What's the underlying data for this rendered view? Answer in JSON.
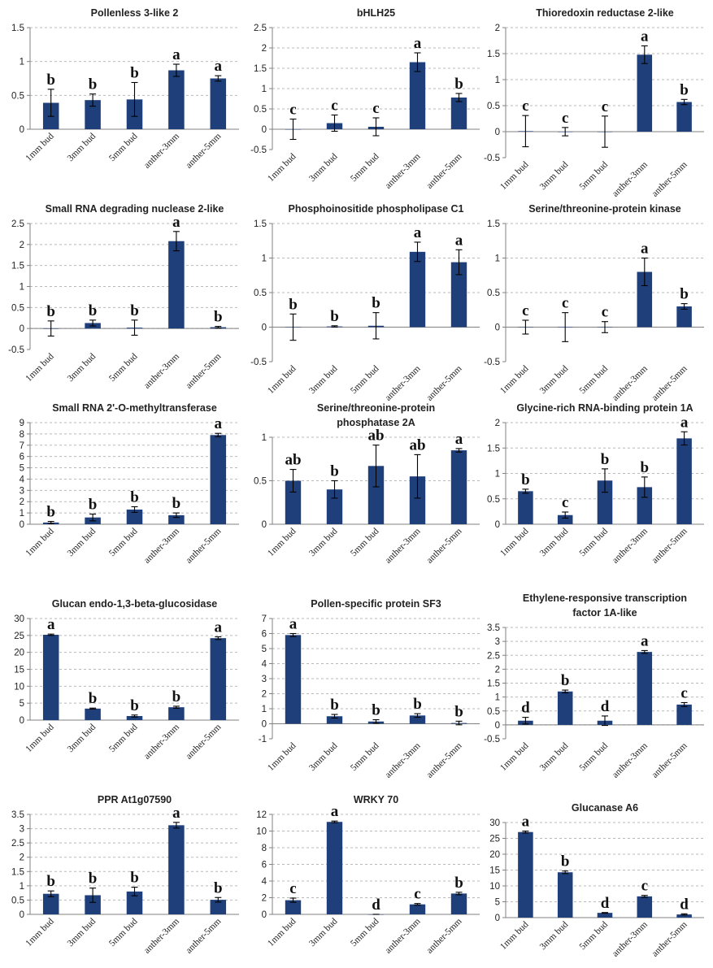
{
  "figure": {
    "panels_count": 15
  },
  "colors": {
    "bar": "#1f3f7a",
    "grid": "#b9b9b9",
    "axis": "#808080"
  },
  "chart_data": [
    {
      "type": "bar",
      "title": [
        "Pollenless 3-like 2"
      ],
      "categories": [
        "1mm bud",
        "3mm bud",
        "5mm bud",
        "anther-3mm",
        "anther-5mm"
      ],
      "values": [
        0.39,
        0.43,
        0.44,
        0.87,
        0.75
      ],
      "errors": [
        0.2,
        0.09,
        0.25,
        0.09,
        0.04
      ],
      "letters": [
        "b",
        "b",
        "b",
        "a",
        "a"
      ],
      "ylim": [
        0,
        1.5
      ],
      "yticks": [
        0,
        0.5,
        1,
        1.5
      ],
      "ytick_labels": [
        "0",
        "0.5",
        "1",
        "1.5"
      ],
      "xlabel": "",
      "ylabel": ""
    },
    {
      "type": "bar",
      "title": [
        "bHLH25"
      ],
      "categories": [
        "1mm bud",
        "3mm bud",
        "5mm bud",
        "anther-3mm",
        "anther-5mm"
      ],
      "values": [
        0.0,
        0.15,
        0.06,
        1.65,
        0.78
      ],
      "errors": [
        0.25,
        0.2,
        0.22,
        0.23,
        0.1
      ],
      "letters": [
        "c",
        "c",
        "c",
        "a",
        "b"
      ],
      "ylim": [
        -0.5,
        2.5
      ],
      "yticks": [
        -0.5,
        0,
        0.5,
        1,
        1.5,
        2,
        2.5
      ],
      "ytick_labels": [
        "-0.5",
        "0",
        "0.5",
        "1",
        "1.5",
        "2",
        "2.5"
      ],
      "xlabel": "",
      "ylabel": ""
    },
    {
      "type": "bar",
      "title": [
        "Thioredoxin reductase 2-like"
      ],
      "categories": [
        "1mm bud",
        "3mm bud",
        "5mm bud",
        "anther-3mm",
        "anther-5mm"
      ],
      "values": [
        0.01,
        0.0,
        0.0,
        1.48,
        0.57
      ],
      "errors": [
        0.3,
        0.08,
        0.3,
        0.17,
        0.05
      ],
      "letters": [
        "c",
        "c",
        "c",
        "a",
        "b"
      ],
      "ylim": [
        -0.5,
        2
      ],
      "yticks": [
        -0.5,
        0,
        0.5,
        1,
        1.5,
        2
      ],
      "ytick_labels": [
        "-0.5",
        "0",
        "0.5",
        "1",
        "1.5",
        "2"
      ],
      "xlabel": "",
      "ylabel": ""
    },
    {
      "type": "bar",
      "title": [
        "Small RNA degrading nuclease 2-like"
      ],
      "categories": [
        "1mm bud",
        "3mm bud",
        "5mm bud",
        "anther-3mm",
        "anther-5mm"
      ],
      "values": [
        0.0,
        0.13,
        0.02,
        2.08,
        0.03
      ],
      "errors": [
        0.18,
        0.07,
        0.18,
        0.23,
        0.02
      ],
      "letters": [
        "b",
        "b",
        "b",
        "a",
        "b"
      ],
      "ylim": [
        -0.5,
        2.5
      ],
      "yticks": [
        -0.5,
        0,
        0.5,
        1,
        1.5,
        2,
        2.5
      ],
      "ytick_labels": [
        "-0.5",
        "0",
        "0.5",
        "1",
        "1.5",
        "2",
        "2.5"
      ],
      "xlabel": "",
      "ylabel": ""
    },
    {
      "type": "bar",
      "title": [
        "Phosphoinositide phospholipase C1"
      ],
      "categories": [
        "1mm bud",
        "3mm bud",
        "5mm bud",
        "anther-3mm",
        "anther-5mm"
      ],
      "values": [
        0.0,
        0.01,
        0.02,
        1.09,
        0.94
      ],
      "errors": [
        0.19,
        0.01,
        0.19,
        0.14,
        0.18
      ],
      "letters": [
        "b",
        "b",
        "b",
        "a",
        "a"
      ],
      "ylim": [
        -0.5,
        1.5
      ],
      "yticks": [
        -0.5,
        0,
        0.5,
        1,
        1.5
      ],
      "ytick_labels": [
        "-0.5",
        "0",
        "0.5",
        "1",
        "1.5"
      ],
      "xlabel": "",
      "ylabel": ""
    },
    {
      "type": "bar",
      "title": [
        "Serine/threonine-protein kinase"
      ],
      "categories": [
        "1mm bud",
        "3mm bud",
        "5mm bud",
        "anther-3mm",
        "anther-5mm"
      ],
      "values": [
        0.0,
        0.0,
        0.0,
        0.8,
        0.3
      ],
      "errors": [
        0.1,
        0.21,
        0.08,
        0.2,
        0.04
      ],
      "letters": [
        "c",
        "c",
        "c",
        "a",
        "b"
      ],
      "ylim": [
        -0.5,
        1.5
      ],
      "yticks": [
        -0.5,
        0,
        0.5,
        1,
        1.5
      ],
      "ytick_labels": [
        "-0.5",
        "0",
        "0.5",
        "1",
        "1.5"
      ],
      "xlabel": "",
      "ylabel": ""
    },
    {
      "type": "bar",
      "title": [
        "Small RNA 2'-O-methyltransferase"
      ],
      "categories": [
        "1mm bud",
        "3mm bud",
        "5mm bud",
        "anther-3mm",
        "anther-5mm"
      ],
      "values": [
        0.15,
        0.6,
        1.3,
        0.8,
        7.9
      ],
      "errors": [
        0.1,
        0.3,
        0.25,
        0.2,
        0.15
      ],
      "letters": [
        "b",
        "b",
        "b",
        "b",
        "a"
      ],
      "ylim": [
        0,
        9
      ],
      "yticks": [
        0,
        1,
        2,
        3,
        4,
        5,
        6,
        7,
        8,
        9
      ],
      "ytick_labels": [
        "0",
        "1",
        "2",
        "3",
        "4",
        "5",
        "6",
        "7",
        "8",
        "9"
      ],
      "xlabel": "",
      "ylabel": ""
    },
    {
      "type": "bar",
      "title": [
        "Serine/threonine-protein",
        "phosphatase 2A"
      ],
      "categories": [
        "1mm bud",
        "3mm bud",
        "5mm bud",
        "anther-3mm",
        "anther-5mm"
      ],
      "values": [
        0.5,
        0.4,
        0.67,
        0.55,
        0.85
      ],
      "errors": [
        0.13,
        0.1,
        0.24,
        0.25,
        0.02
      ],
      "letters": [
        "ab",
        "b",
        "ab",
        "ab",
        "a"
      ],
      "ylim": [
        0,
        1
      ],
      "yticks": [
        0,
        0.5,
        1
      ],
      "ytick_labels": [
        "0",
        "0.5",
        "1"
      ],
      "xlabel": "",
      "ylabel": ""
    },
    {
      "type": "bar",
      "title": [
        "Glycine-rich RNA-binding protein 1A"
      ],
      "categories": [
        "1mm bud",
        "3mm bud",
        "5mm bud",
        "anther-3mm",
        "anther-5mm"
      ],
      "values": [
        0.65,
        0.18,
        0.86,
        0.73,
        1.69
      ],
      "errors": [
        0.04,
        0.06,
        0.23,
        0.2,
        0.13
      ],
      "letters": [
        "b",
        "c",
        "b",
        "b",
        "a"
      ],
      "ylim": [
        0,
        2
      ],
      "yticks": [
        0,
        0.5,
        1,
        1.5,
        2
      ],
      "ytick_labels": [
        "0",
        "0.5",
        "1",
        "1.5",
        "2"
      ],
      "xlabel": "",
      "ylabel": ""
    },
    {
      "type": "bar",
      "title": [
        "Glucan endo-1,3-beta-glucosidase"
      ],
      "categories": [
        "1mm bud",
        "3mm bud",
        "5mm bud",
        "anther-3mm",
        "anther-5mm"
      ],
      "values": [
        25.2,
        3.4,
        1.2,
        3.8,
        24.2
      ],
      "errors": [
        0.2,
        0.15,
        0.3,
        0.3,
        0.4
      ],
      "letters": [
        "a",
        "b",
        "b",
        "b",
        "a"
      ],
      "ylim": [
        0,
        30
      ],
      "yticks": [
        0,
        5,
        10,
        15,
        20,
        25,
        30
      ],
      "ytick_labels": [
        "0",
        "5",
        "10",
        "15",
        "20",
        "25",
        "30"
      ],
      "xlabel": "",
      "ylabel": ""
    },
    {
      "type": "bar",
      "title": [
        "Pollen-specific protein SF3"
      ],
      "categories": [
        "1mm bud",
        "3mm bud",
        "5mm bud",
        "anther-3mm",
        "anther-5mm"
      ],
      "values": [
        5.9,
        0.5,
        0.15,
        0.55,
        0.05
      ],
      "errors": [
        0.1,
        0.12,
        0.12,
        0.12,
        0.12
      ],
      "letters": [
        "a",
        "b",
        "b",
        "b",
        "b"
      ],
      "ylim": [
        -1,
        7
      ],
      "yticks": [
        -1,
        0,
        1,
        2,
        3,
        4,
        5,
        6,
        7
      ],
      "ytick_labels": [
        "-1",
        "0",
        "1",
        "2",
        "3",
        "4",
        "5",
        "6",
        "7"
      ],
      "xlabel": "",
      "ylabel": ""
    },
    {
      "type": "bar",
      "title": [
        "Ethylene-responsive transcription",
        "factor 1A-like"
      ],
      "categories": [
        "1mm bud",
        "3mm bud",
        "5mm bud",
        "anther-3mm",
        "anther-5mm"
      ],
      "values": [
        0.15,
        1.2,
        0.15,
        2.62,
        0.73
      ],
      "errors": [
        0.12,
        0.05,
        0.17,
        0.05,
        0.07
      ],
      "letters": [
        "d",
        "b",
        "d",
        "a",
        "c"
      ],
      "ylim": [
        -0.5,
        3.5
      ],
      "yticks": [
        -0.5,
        0,
        0.5,
        1,
        1.5,
        2,
        2.5,
        3,
        3.5
      ],
      "ytick_labels": [
        "-0.5",
        "0",
        "0.5",
        "1",
        "1.5",
        "2",
        "2.5",
        "3",
        "3.5"
      ],
      "xlabel": "",
      "ylabel": ""
    },
    {
      "type": "bar",
      "title": [
        "PPR At1g07590"
      ],
      "categories": [
        "1mm bud",
        "3mm bud",
        "5mm bud",
        "anther-3mm",
        "anther-5mm"
      ],
      "values": [
        0.72,
        0.67,
        0.8,
        3.12,
        0.51
      ],
      "errors": [
        0.1,
        0.25,
        0.15,
        0.1,
        0.08
      ],
      "letters": [
        "b",
        "b",
        "b",
        "a",
        "b"
      ],
      "ylim": [
        0,
        3.5
      ],
      "yticks": [
        0,
        0.5,
        1,
        1.5,
        2,
        2.5,
        3,
        3.5
      ],
      "ytick_labels": [
        "0",
        "0.5",
        "1",
        "1.5",
        "2",
        "2.5",
        "3",
        "3.5"
      ],
      "xlabel": "",
      "ylabel": ""
    },
    {
      "type": "bar",
      "title": [
        "WRKY 70"
      ],
      "categories": [
        "1mm bud",
        "3mm bud",
        "5mm bud",
        "anther-3mm",
        "anther-5mm"
      ],
      "values": [
        1.7,
        11.1,
        0.0,
        1.2,
        2.5
      ],
      "errors": [
        0.25,
        0.1,
        0.0,
        0.1,
        0.15
      ],
      "letters": [
        "c",
        "a",
        "d",
        "c",
        "b"
      ],
      "ylim": [
        0,
        12
      ],
      "yticks": [
        0,
        2,
        4,
        6,
        8,
        10,
        12
      ],
      "ytick_labels": [
        "0",
        "2",
        "4",
        "6",
        "8",
        "10",
        "12"
      ],
      "xlabel": "",
      "ylabel": ""
    },
    {
      "type": "bar",
      "title": [
        "Glucanase A6"
      ],
      "categories": [
        "1mm bud",
        "3mm bud",
        "5mm bud",
        "anther-3mm",
        "anther-5mm"
      ],
      "values": [
        27.0,
        14.3,
        1.5,
        6.7,
        1.0
      ],
      "errors": [
        0.3,
        0.4,
        0.1,
        0.3,
        0.2
      ],
      "letters": [
        "a",
        "b",
        "d",
        "c",
        "d"
      ],
      "ylim": [
        0,
        30
      ],
      "yticks": [
        0,
        5,
        10,
        15,
        20,
        25,
        30
      ],
      "ytick_labels": [
        "0",
        "5",
        "10",
        "15",
        "20",
        "25",
        "30"
      ],
      "xlabel": "",
      "ylabel": ""
    }
  ]
}
